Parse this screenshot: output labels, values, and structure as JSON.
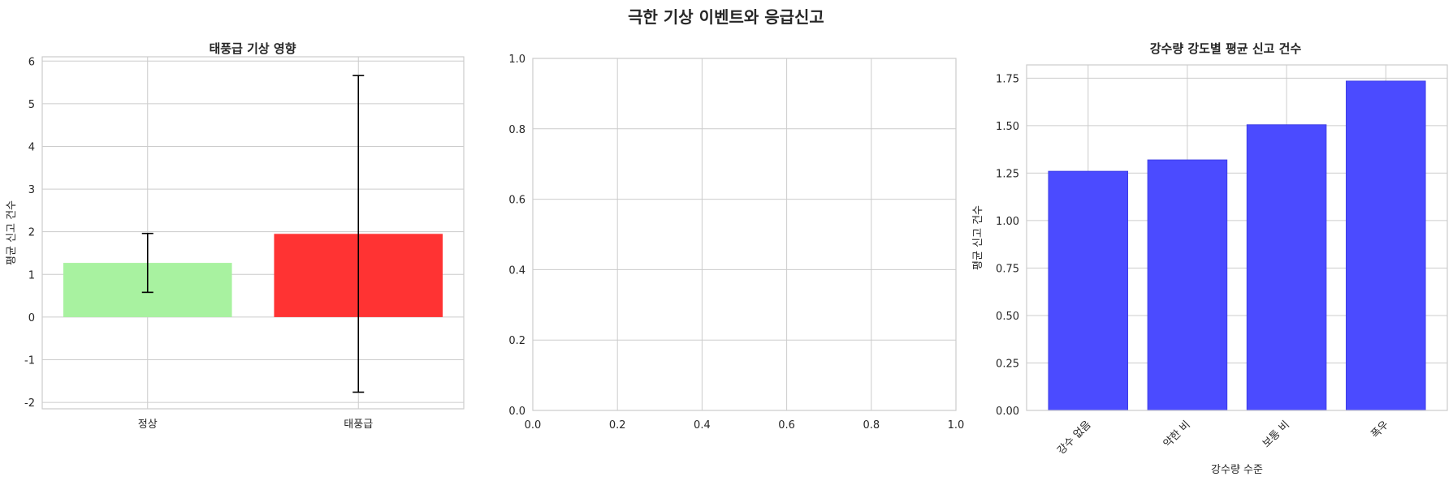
{
  "figure": {
    "title": "극한 기상 이벤트와 응급신고"
  },
  "colors": {
    "normal": "#a8f2a0",
    "typhoon": "#ff3333",
    "rain": "#4b4bff",
    "errorbar": "#000000"
  },
  "chart_data": [
    {
      "type": "bar",
      "title": "태풍급 기상 영향",
      "xlabel": "",
      "ylabel": "평균 신고 건수",
      "categories": [
        "정상",
        "태풍급"
      ],
      "values": [
        1.27,
        1.95
      ],
      "errors": [
        0.69,
        3.71
      ],
      "ylim": [
        -2.15,
        6.1
      ],
      "yticks": [
        -2,
        -1,
        0,
        1,
        2,
        3,
        4,
        5,
        6
      ],
      "ytick_labels": [
        "-2",
        "-1",
        "0",
        "1",
        "2",
        "3",
        "4",
        "5",
        "6"
      ],
      "grid": true
    },
    {
      "type": "scatter",
      "title": "",
      "xlabel": "",
      "ylabel": "",
      "xlim": [
        0,
        1
      ],
      "ylim": [
        0,
        1
      ],
      "xticks": [
        0,
        0.2,
        0.4,
        0.6,
        0.8,
        1.0
      ],
      "yticks": [
        0,
        0.2,
        0.4,
        0.6,
        0.8,
        1.0
      ],
      "xtick_labels": [
        "0.0",
        "0.2",
        "0.4",
        "0.6",
        "0.8",
        "1.0"
      ],
      "ytick_labels": [
        "0.0",
        "0.2",
        "0.4",
        "0.6",
        "0.8",
        "1.0"
      ],
      "grid": true
    },
    {
      "type": "bar",
      "title": "강수량 강도별 평균 신고 건수",
      "xlabel": "강수량 수준",
      "ylabel": "평균 신고 건수",
      "categories": [
        "강수 없음",
        "약한 비",
        "보통 비",
        "폭우"
      ],
      "values": [
        1.26,
        1.32,
        1.505,
        1.735
      ],
      "ylim": [
        0,
        1.82
      ],
      "yticks": [
        0,
        0.25,
        0.5,
        0.75,
        1.0,
        1.25,
        1.5,
        1.75
      ],
      "ytick_labels": [
        "0.00",
        "0.25",
        "0.50",
        "0.75",
        "1.00",
        "1.25",
        "1.50",
        "1.75"
      ],
      "grid": true
    }
  ]
}
